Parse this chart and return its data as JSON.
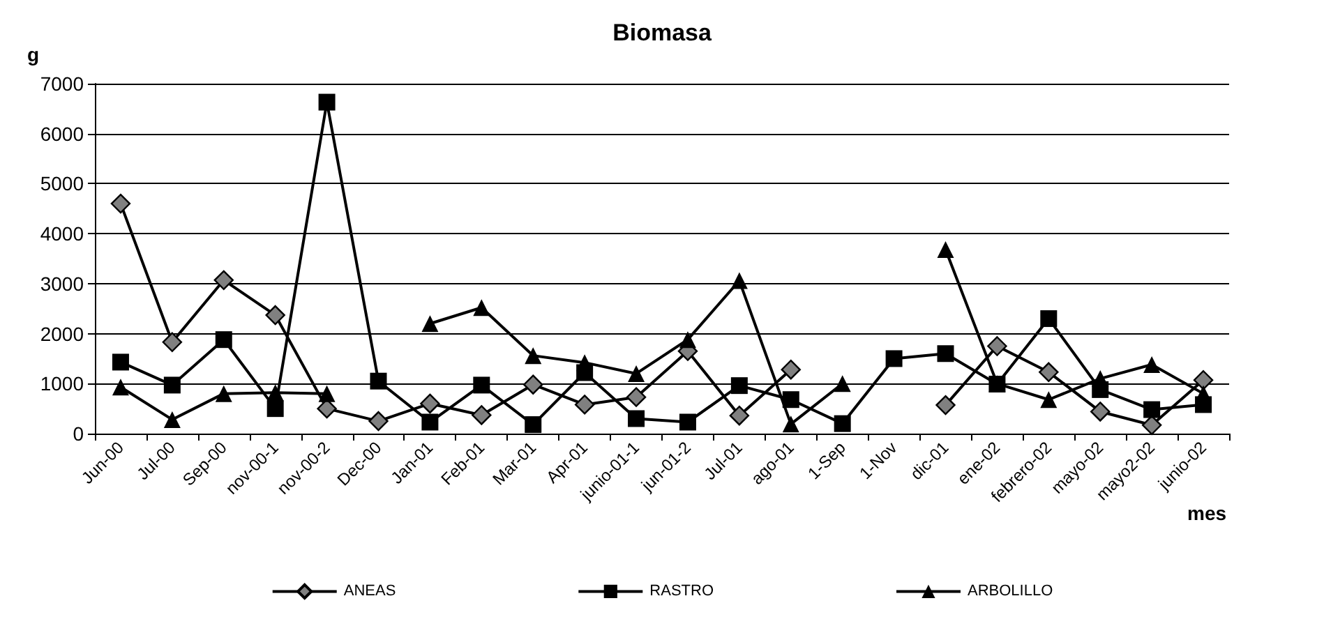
{
  "chart_data": {
    "type": "line",
    "title": "Biomasa",
    "xlabel": "mes",
    "ylabel": "g",
    "categories": [
      "Jun-00",
      "Jul-00",
      "Sep-00",
      "nov-00-1",
      "nov-00-2",
      "Dec-00",
      "Jan-01",
      "Feb-01",
      "Mar-01",
      "Apr-01",
      "junio-01-1",
      "jun-01-2",
      "Jul-01",
      "ago-01",
      "1-Sep",
      "1-Nov",
      "dic-01",
      "ene-02",
      "febrero-02",
      "mayo-02",
      "mayo2-02",
      "junio-02"
    ],
    "series": [
      {
        "name": "ANEAS",
        "color": "#808080",
        "marker": "diamond",
        "values": [
          4600,
          1830,
          3070,
          2370,
          500,
          250,
          600,
          370,
          980,
          580,
          730,
          1650,
          360,
          1280,
          null,
          null,
          570,
          1750,
          1230,
          440,
          170,
          1070
        ]
      },
      {
        "name": "RASTRO",
        "color": "#000000",
        "marker": "square",
        "values": [
          1430,
          970,
          1880,
          500,
          6630,
          1050,
          230,
          970,
          180,
          1220,
          300,
          230,
          960,
          680,
          200,
          1500,
          1600,
          990,
          2300,
          880,
          480,
          580
        ]
      },
      {
        "name": "ARBOLILLO",
        "color": "#000000",
        "marker": "triangle",
        "values": [
          930,
          280,
          800,
          820,
          800,
          null,
          2200,
          2520,
          1560,
          1420,
          1200,
          1880,
          3060,
          190,
          1000,
          null,
          3680,
          1000,
          680,
          1100,
          1380,
          800
        ]
      }
    ],
    "ylim": [
      0,
      7000
    ],
    "yticks": [
      0,
      1000,
      2000,
      3000,
      4000,
      5000,
      6000,
      7000
    ],
    "grid": "y",
    "legend": "bottom",
    "line_style": "solid"
  }
}
